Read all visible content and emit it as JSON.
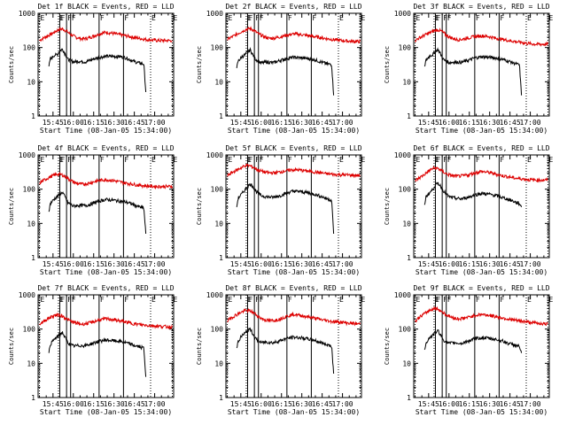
{
  "figure": {
    "ylabel": "Counts/sec",
    "xlabel": "Start Time (08-Jan-05 15:34:00)",
    "colors": {
      "events": "#000000",
      "lld": "#dd0000",
      "frame": "#000000"
    }
  },
  "panels": [
    {
      "title": "Det 1f BLACK = Events, RED = LLD"
    },
    {
      "title": "Det 2f BLACK = Events, RED = LLD"
    },
    {
      "title": "Det 3f BLACK = Events, RED = LLD"
    },
    {
      "title": "Det 4f BLACK = Events, RED = LLD"
    },
    {
      "title": "Det 5f BLACK = Events, RED = LLD"
    },
    {
      "title": "Det 6f BLACK = Events, RED = LLD"
    },
    {
      "title": "Det 7f BLACK = Events, RED = LLD"
    },
    {
      "title": "Det 8f BLACK = Events, RED = LLD"
    },
    {
      "title": "Det 9f BLACK = Events, RED = LLD"
    }
  ],
  "chart_data": {
    "type": "line",
    "layout": "3x3 small multiples",
    "x_unit": "minutes since 15:34:00 on 08-Jan-05",
    "xlim": [
      0,
      100
    ],
    "xticks": [
      {
        "value": 11,
        "label": "15:45"
      },
      {
        "value": 26,
        "label": "16:00"
      },
      {
        "value": 41,
        "label": "16:15"
      },
      {
        "value": 56,
        "label": "16:30"
      },
      {
        "value": 71,
        "label": "16:45"
      },
      {
        "value": 86,
        "label": "17:00"
      }
    ],
    "ylog": true,
    "ylim": [
      1,
      1000
    ],
    "yticks": [
      {
        "value": 1,
        "label": "1"
      },
      {
        "value": 10,
        "label": "10"
      },
      {
        "value": 100,
        "label": "100"
      },
      {
        "value": 1000,
        "label": "1000"
      }
    ],
    "markers": [
      {
        "x": 1,
        "label": "E",
        "style": "dotted"
      },
      {
        "x": 15,
        "label": "E",
        "style": "dotted"
      },
      {
        "x": 16,
        "label": "F",
        "style": "solid"
      },
      {
        "x": 21,
        "label": "F",
        "style": "solid"
      },
      {
        "x": 24,
        "label": "F",
        "style": "solid"
      },
      {
        "x": 45,
        "label": "F",
        "style": "solid"
      },
      {
        "x": 63,
        "label": "F",
        "style": "solid"
      },
      {
        "x": 83,
        "label": "E",
        "style": "dotted"
      },
      {
        "x": 99,
        "label": "E",
        "style": "dotted"
      }
    ],
    "panels": [
      {
        "events": {
          "x": [
            8,
            9,
            12,
            14,
            16,
            18,
            20,
            22,
            24,
            26,
            30,
            35,
            40,
            45,
            50,
            55,
            60,
            65,
            70,
            75,
            78,
            79.5
          ],
          "y": [
            28,
            45,
            60,
            62,
            80,
            90,
            65,
            45,
            42,
            38,
            40,
            38,
            45,
            52,
            55,
            55,
            55,
            50,
            40,
            35,
            33,
            5
          ]
        },
        "lld": {
          "x": [
            1,
            3,
            6,
            9,
            12,
            15,
            18,
            21,
            24,
            28,
            32,
            36,
            40,
            45,
            50,
            55,
            60,
            65,
            70,
            75,
            80,
            85,
            90,
            95,
            99
          ],
          "y": [
            160,
            180,
            210,
            240,
            280,
            330,
            350,
            300,
            240,
            200,
            180,
            185,
            210,
            250,
            280,
            260,
            240,
            220,
            200,
            185,
            170,
            165,
            160,
            160,
            160
          ]
        }
      },
      {
        "events": {
          "x": [
            8,
            9,
            12,
            14,
            16,
            18,
            20,
            22,
            24,
            26,
            30,
            35,
            40,
            45,
            50,
            55,
            60,
            65,
            70,
            75,
            78,
            79.5
          ],
          "y": [
            25,
            40,
            55,
            60,
            75,
            85,
            60,
            45,
            40,
            35,
            38,
            36,
            42,
            48,
            52,
            50,
            48,
            45,
            38,
            33,
            32,
            4
          ]
        },
        "lld": {
          "x": [
            1,
            3,
            6,
            9,
            12,
            15,
            18,
            21,
            24,
            28,
            32,
            36,
            40,
            45,
            50,
            55,
            60,
            65,
            70,
            75,
            80,
            85,
            90,
            95,
            99
          ],
          "y": [
            170,
            190,
            220,
            260,
            300,
            340,
            360,
            310,
            250,
            210,
            185,
            190,
            205,
            230,
            250,
            240,
            225,
            210,
            195,
            180,
            170,
            160,
            155,
            150,
            150
          ]
        }
      },
      {
        "events": {
          "x": [
            8,
            9,
            12,
            14,
            16,
            18,
            20,
            22,
            24,
            26,
            30,
            35,
            40,
            45,
            50,
            55,
            60,
            65,
            70,
            75,
            78,
            79.5
          ],
          "y": [
            28,
            42,
            58,
            62,
            78,
            88,
            62,
            44,
            40,
            36,
            38,
            37,
            42,
            50,
            54,
            52,
            50,
            46,
            40,
            34,
            31,
            4
          ]
        },
        "lld": {
          "x": [
            1,
            3,
            6,
            9,
            12,
            15,
            18,
            21,
            24,
            28,
            32,
            36,
            40,
            45,
            50,
            55,
            60,
            65,
            70,
            75,
            80,
            85,
            90,
            95,
            99
          ],
          "y": [
            160,
            180,
            210,
            240,
            270,
            310,
            330,
            290,
            230,
            190,
            170,
            175,
            190,
            210,
            220,
            210,
            190,
            175,
            160,
            150,
            140,
            130,
            125,
            125,
            125
          ]
        }
      },
      {
        "events": {
          "x": [
            8,
            9,
            12,
            14,
            16,
            18,
            20,
            22,
            24,
            26,
            30,
            35,
            40,
            45,
            50,
            55,
            60,
            65,
            70,
            75,
            78,
            79.5
          ],
          "y": [
            22,
            38,
            52,
            60,
            72,
            82,
            58,
            40,
            36,
            32,
            34,
            33,
            38,
            45,
            50,
            48,
            45,
            42,
            36,
            30,
            28,
            5
          ]
        },
        "lld": {
          "x": [
            1,
            3,
            6,
            9,
            12,
            15,
            18,
            21,
            24,
            28,
            32,
            36,
            40,
            45,
            50,
            55,
            60,
            65,
            70,
            75,
            80,
            85,
            90,
            95,
            99
          ],
          "y": [
            150,
            170,
            200,
            230,
            260,
            280,
            260,
            220,
            180,
            150,
            140,
            145,
            160,
            180,
            190,
            180,
            165,
            150,
            140,
            130,
            125,
            120,
            120,
            120,
            120
          ]
        }
      },
      {
        "events": {
          "x": [
            8,
            9,
            12,
            14,
            16,
            18,
            20,
            22,
            24,
            26,
            30,
            35,
            40,
            45,
            50,
            55,
            60,
            65,
            70,
            75,
            78,
            79.5
          ],
          "y": [
            30,
            55,
            75,
            95,
            120,
            140,
            120,
            90,
            75,
            65,
            60,
            58,
            65,
            78,
            88,
            85,
            80,
            72,
            62,
            52,
            48,
            5
          ]
        },
        "lld": {
          "x": [
            1,
            3,
            6,
            9,
            12,
            15,
            18,
            21,
            24,
            28,
            32,
            36,
            40,
            45,
            50,
            55,
            60,
            65,
            70,
            75,
            80,
            85,
            90,
            95,
            99
          ],
          "y": [
            250,
            280,
            330,
            380,
            440,
            500,
            480,
            420,
            360,
            320,
            300,
            300,
            320,
            350,
            370,
            360,
            340,
            320,
            300,
            280,
            270,
            265,
            260,
            255,
            250
          ]
        }
      },
      {
        "events": {
          "x": [
            8,
            9,
            12,
            14,
            16,
            18,
            20,
            22,
            24,
            26,
            30,
            35,
            40,
            45,
            50,
            55,
            60,
            65,
            70,
            75,
            78,
            79.5
          ],
          "y": [
            35,
            60,
            80,
            100,
            130,
            150,
            120,
            90,
            72,
            60,
            55,
            52,
            58,
            68,
            75,
            72,
            66,
            58,
            50,
            42,
            38,
            30
          ]
        },
        "lld": {
          "x": [
            1,
            3,
            6,
            9,
            12,
            15,
            18,
            21,
            24,
            28,
            32,
            36,
            40,
            45,
            50,
            55,
            60,
            65,
            70,
            75,
            80,
            85,
            90,
            95,
            99
          ],
          "y": [
            180,
            200,
            240,
            290,
            360,
            420,
            400,
            340,
            280,
            250,
            240,
            245,
            260,
            300,
            330,
            310,
            280,
            250,
            230,
            210,
            200,
            190,
            185,
            185,
            185
          ]
        }
      },
      {
        "events": {
          "x": [
            8,
            9,
            12,
            14,
            16,
            18,
            20,
            22,
            24,
            26,
            30,
            35,
            40,
            45,
            50,
            55,
            60,
            65,
            70,
            75,
            78,
            79.5
          ],
          "y": [
            20,
            36,
            50,
            58,
            70,
            80,
            55,
            40,
            35,
            32,
            33,
            33,
            38,
            44,
            48,
            46,
            44,
            40,
            34,
            30,
            28,
            4
          ]
        },
        "lld": {
          "x": [
            1,
            3,
            6,
            9,
            12,
            15,
            18,
            21,
            24,
            28,
            32,
            36,
            40,
            45,
            50,
            55,
            60,
            65,
            70,
            75,
            80,
            85,
            90,
            95,
            99
          ],
          "y": [
            140,
            160,
            190,
            220,
            250,
            260,
            240,
            200,
            170,
            150,
            140,
            145,
            160,
            185,
            200,
            190,
            175,
            160,
            145,
            135,
            130,
            125,
            120,
            118,
            115
          ]
        }
      },
      {
        "events": {
          "x": [
            8,
            9,
            12,
            14,
            16,
            18,
            20,
            22,
            24,
            26,
            30,
            35,
            40,
            45,
            50,
            55,
            60,
            65,
            70,
            75,
            78,
            79.5
          ],
          "y": [
            28,
            45,
            65,
            75,
            90,
            100,
            72,
            52,
            45,
            40,
            42,
            40,
            46,
            54,
            58,
            56,
            52,
            48,
            40,
            35,
            32,
            5
          ]
        },
        "lld": {
          "x": [
            1,
            3,
            6,
            9,
            12,
            15,
            18,
            21,
            24,
            28,
            32,
            36,
            40,
            45,
            50,
            55,
            60,
            65,
            70,
            75,
            80,
            85,
            90,
            95,
            99
          ],
          "y": [
            170,
            200,
            240,
            280,
            320,
            350,
            340,
            290,
            230,
            190,
            175,
            180,
            200,
            240,
            270,
            250,
            230,
            210,
            190,
            175,
            165,
            160,
            150,
            145,
            140
          ]
        }
      },
      {
        "events": {
          "x": [
            8,
            9,
            12,
            14,
            16,
            18,
            20,
            22,
            24,
            26,
            30,
            35,
            40,
            45,
            50,
            55,
            60,
            65,
            70,
            75,
            78,
            79.5
          ],
          "y": [
            25,
            40,
            58,
            66,
            80,
            90,
            65,
            48,
            42,
            38,
            40,
            38,
            44,
            52,
            56,
            54,
            50,
            46,
            38,
            34,
            31,
            20
          ]
        },
        "lld": {
          "x": [
            1,
            3,
            6,
            9,
            12,
            15,
            18,
            21,
            24,
            28,
            32,
            36,
            40,
            45,
            50,
            55,
            60,
            65,
            70,
            75,
            80,
            85,
            90,
            95,
            99
          ],
          "y": [
            170,
            200,
            250,
            300,
            360,
            400,
            380,
            320,
            260,
            220,
            200,
            205,
            220,
            250,
            270,
            255,
            235,
            215,
            195,
            180,
            170,
            160,
            150,
            145,
            140
          ]
        }
      }
    ]
  }
}
